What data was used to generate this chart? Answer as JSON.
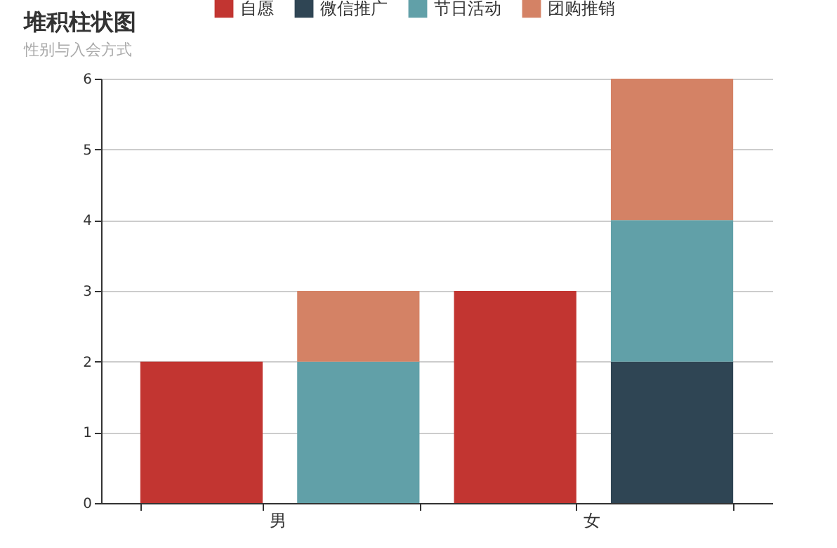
{
  "chart_data": {
    "type": "bar",
    "title": "堆积柱状图",
    "subtitle": "性别与入会方式",
    "categories": [
      "男",
      null,
      "女",
      null
    ],
    "stacked": true,
    "series": [
      {
        "name": "自愿",
        "color": "#c23531",
        "values": [
          2,
          null,
          3,
          null
        ]
      },
      {
        "name": "微信推广",
        "color": "#2f4554",
        "values": [
          null,
          0,
          null,
          2
        ]
      },
      {
        "name": "节日活动",
        "color": "#61a0a8",
        "values": [
          null,
          2,
          null,
          2
        ]
      },
      {
        "name": "团购推销",
        "color": "#d48265",
        "values": [
          null,
          1,
          null,
          2
        ]
      }
    ],
    "ylim": [
      0,
      6
    ],
    "yticks": [
      0,
      1,
      2,
      3,
      4,
      5,
      6
    ],
    "grid": "y",
    "legend": "top"
  }
}
